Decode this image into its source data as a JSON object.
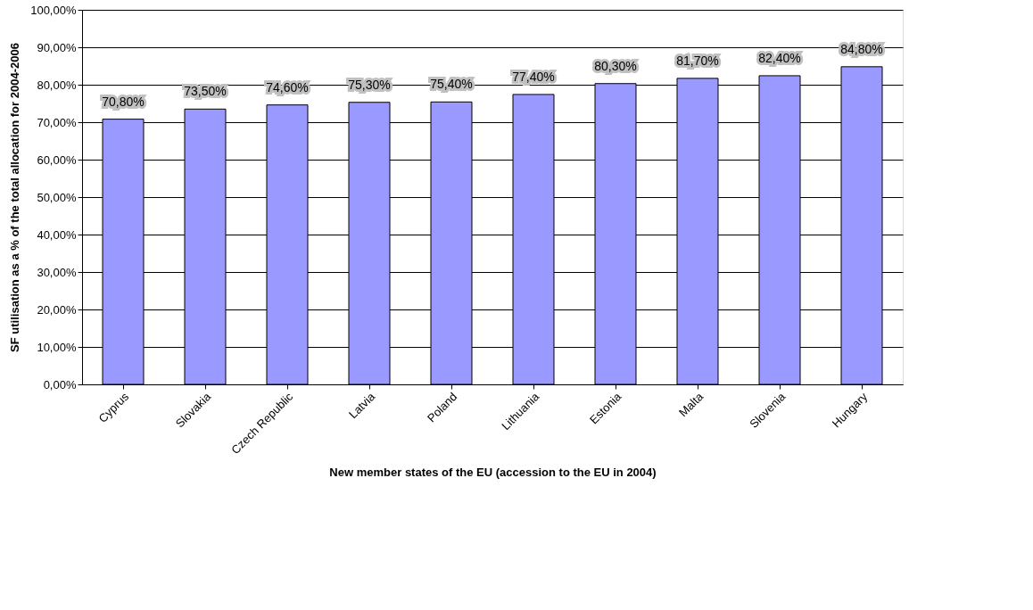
{
  "chart_data": {
    "type": "bar",
    "xlabel": "New member states of the EU (accession to the EU in 2004)",
    "ylabel": "SF utilisation as a % of the total allocation for 2004-2006",
    "categories": [
      "Cyprus",
      "Slovakia",
      "Czech Republic",
      "Latvia",
      "Poland",
      "Lithuania",
      "Estonia",
      "Malta",
      "Slovenia",
      "Hungary"
    ],
    "values": [
      70.8,
      73.5,
      74.6,
      75.3,
      75.4,
      77.4,
      80.3,
      81.7,
      82.4,
      84.8
    ],
    "value_labels": [
      "70,80%",
      "73,50%",
      "74,60%",
      "75,30%",
      "75,40%",
      "77,40%",
      "80,30%",
      "81,70%",
      "82,40%",
      "84,80%"
    ],
    "color": "#9999ff",
    "ylim": [
      0,
      100
    ],
    "yticks": [
      {
        "value": 0,
        "label": "0,00%"
      },
      {
        "value": 10,
        "label": "10,00%"
      },
      {
        "value": 20,
        "label": "20,00%"
      },
      {
        "value": 30,
        "label": "30,00%"
      },
      {
        "value": 40,
        "label": "40,00%"
      },
      {
        "value": 50,
        "label": "50,00%"
      },
      {
        "value": 60,
        "label": "60,00%"
      },
      {
        "value": 70,
        "label": "70,00%"
      },
      {
        "value": 80,
        "label": "80,00%"
      },
      {
        "value": 90,
        "label": "90,00%"
      },
      {
        "value": 100,
        "label": "100,00%"
      }
    ],
    "grid": "y"
  }
}
